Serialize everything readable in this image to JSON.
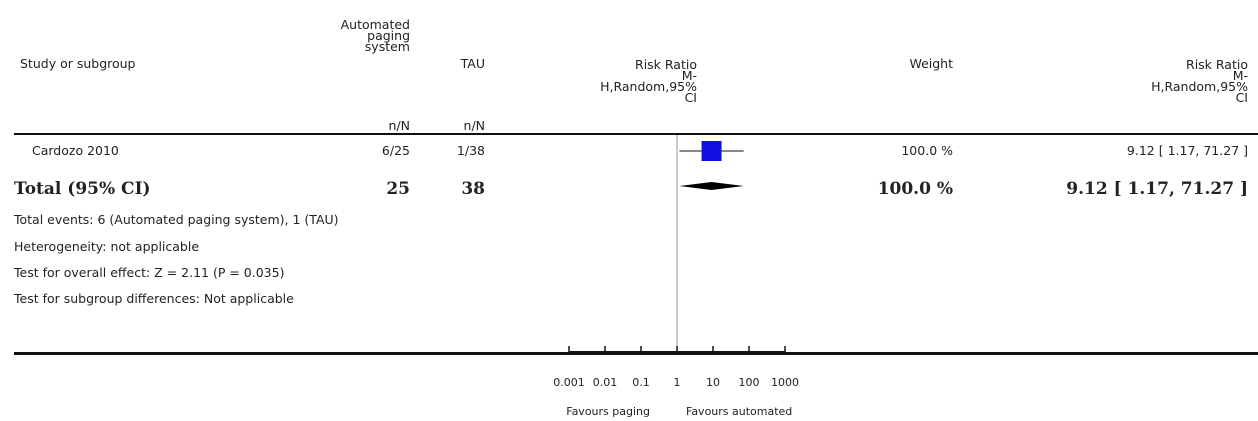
{
  "headers": {
    "study": "Study or subgroup",
    "group1": [
      "Automated",
      "paging",
      "system"
    ],
    "group2": "TAU",
    "rr_plot": [
      "Risk Ratio",
      "M-",
      "H,Random,95%",
      "CI"
    ],
    "weight": "Weight",
    "rr_text": [
      "Risk Ratio",
      "M-",
      "H,Random,95%",
      "CI"
    ],
    "nN1": "n/N",
    "nN2": "n/N"
  },
  "studies": [
    {
      "name": "Cardozo 2010",
      "group1": "6/25",
      "group2": "1/38",
      "weight": "100.0 %",
      "ci": "9.12 [ 1.17, 71.27 ]"
    }
  ],
  "total": {
    "label": "Total (95% CI)",
    "n1": "25",
    "n2": "38",
    "weight": "100.0 %",
    "ci": "9.12 [ 1.17, 71.27 ]"
  },
  "notes": [
    "Total events: 6 (Automated paging system), 1 (TAU)",
    "Heterogeneity: not applicable",
    "Test for overall effect: Z = 2.11 (P = 0.035)",
    "Test for subgroup differences: Not applicable"
  ],
  "axis": {
    "ticks": [
      "0.001",
      "0.01",
      "0.1",
      "1",
      "10",
      "100",
      "1000"
    ],
    "favours_left": "Favours paging",
    "favours_right": "Favours automated"
  },
  "chart_data": {
    "type": "forest",
    "scale": "log",
    "xlim": [
      0.001,
      1000
    ],
    "null_line": 1,
    "studies": [
      {
        "name": "Cardozo 2010",
        "estimate": 9.12,
        "ci_low": 1.17,
        "ci_high": 71.27,
        "weight": 100.0
      }
    ],
    "pooled": {
      "estimate": 9.12,
      "ci_low": 1.17,
      "ci_high": 71.27
    },
    "colors": {
      "study_box": "#1010e0",
      "diamond": "#000000"
    }
  }
}
